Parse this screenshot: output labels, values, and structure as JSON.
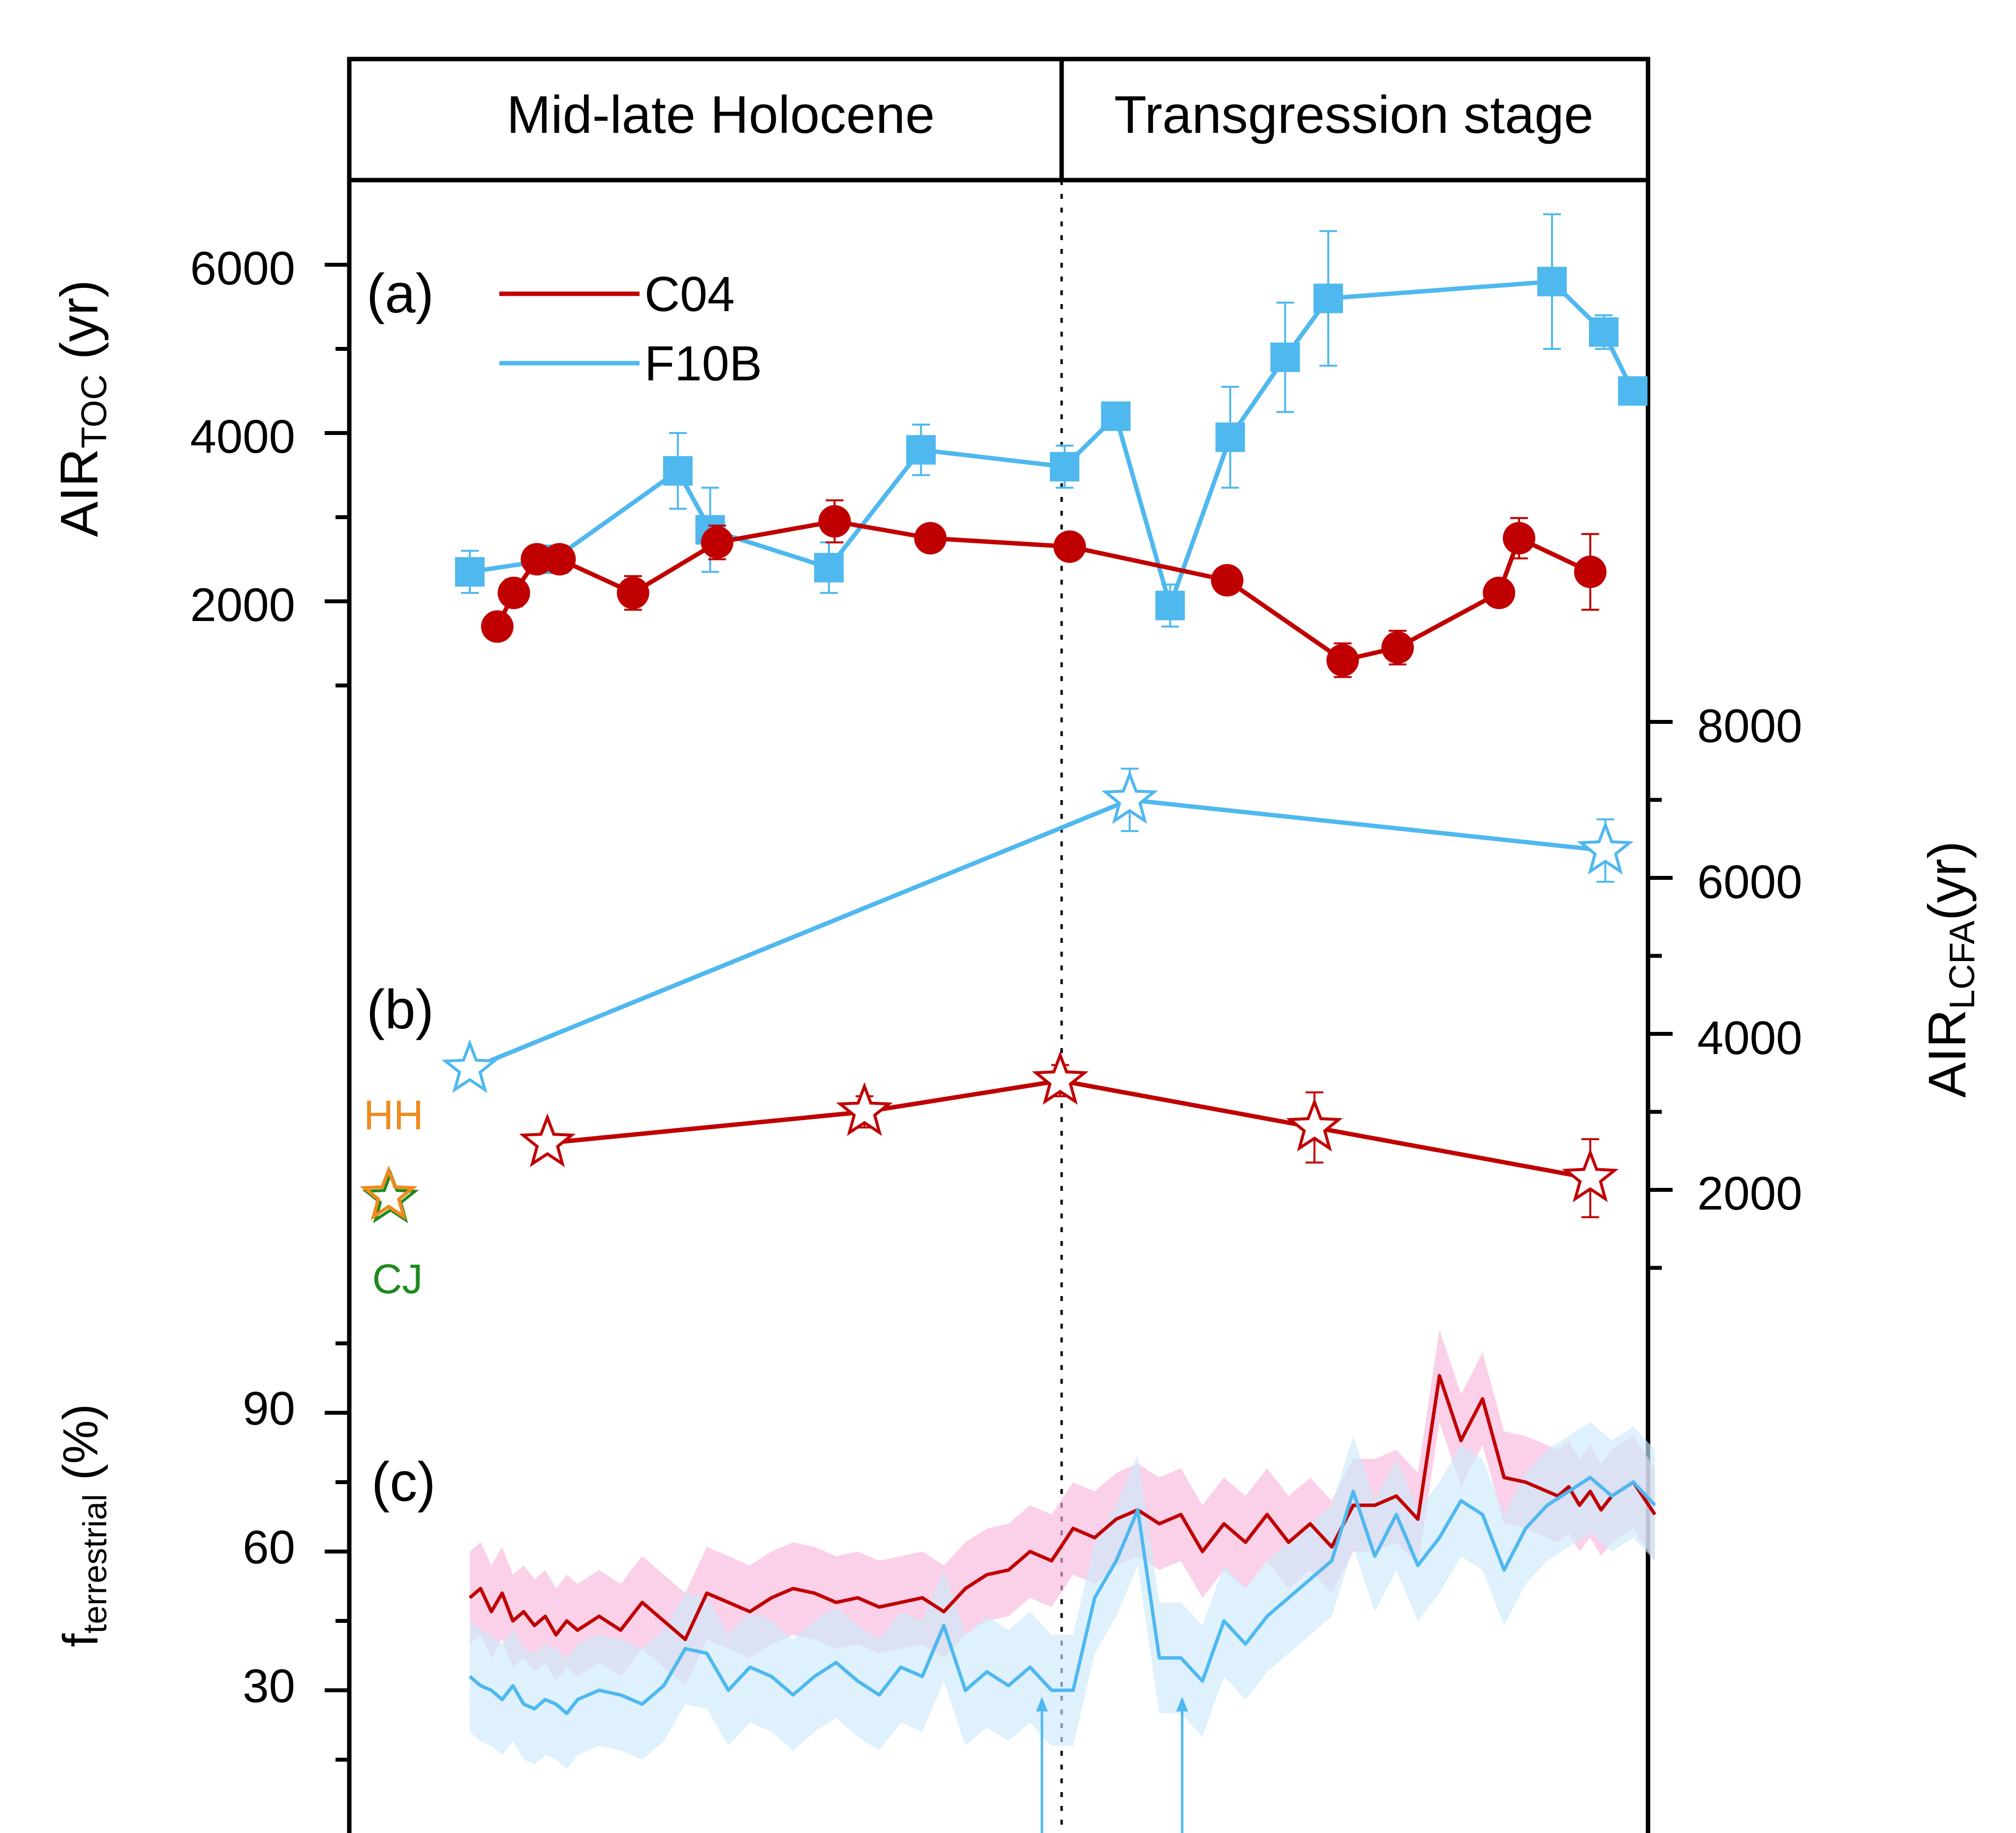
{
  "stages": [
    "Mid-late Holocene",
    "Transgression stage"
  ],
  "panel_labels": {
    "a": "(a)",
    "b": "(b)",
    "c": "(c)"
  },
  "legend": [
    {
      "label": "C04",
      "color": "#c00000"
    },
    {
      "label": "F10B",
      "color": "#4fb8ef"
    }
  ],
  "axes": {
    "toc": {
      "label_main": "AIR",
      "label_sub": "TOC",
      "label_unit": " (yr)",
      "ticks": [
        "6000",
        "4000",
        "2000"
      ]
    },
    "lcfa": {
      "label_main": "AIR",
      "label_sub": "LCFA",
      "label_unit": "(yr)",
      "ticks": [
        "8000",
        "6000",
        "4000",
        "2000"
      ]
    },
    "fterr": {
      "label_main": "f",
      "label_sub": "terrestrial",
      "label_unit": " (%)",
      "ticks": [
        "90",
        "60",
        "30"
      ]
    }
  },
  "reference_labels": {
    "hh": "HH",
    "cj": "CJ"
  },
  "colors": {
    "c04": "#c00000",
    "f10b": "#4fb8ef",
    "c04_band": "#f8b8dc",
    "f10b_band": "#cde9fa",
    "hh": "#f08a1e",
    "cj": "#1e8a1e"
  },
  "chart_data": [
    {
      "panel": "a",
      "type": "line",
      "ylabel": "AIR_TOC (yr)",
      "ylim": [
        1000,
        7000
      ],
      "series": [
        {
          "name": "C04",
          "marker": "circle",
          "x": [
            0.0255,
            0.0409,
            0.0623,
            0.0833,
            0.1515,
            0.2296,
            0.3386,
            0.4275,
            0.5568,
            0.703,
            0.8102,
            0.8612,
            0.9553,
            0.9739,
            1.04
          ],
          "y": [
            1700,
            2100,
            2500,
            2500,
            2100,
            2700,
            2950,
            2750,
            2650,
            2250,
            1300,
            1450,
            2100,
            2750,
            2350
          ],
          "err": [
            150,
            160,
            130,
            150,
            200,
            200,
            250,
            0,
            120,
            130,
            200,
            200,
            100,
            240,
            450
          ]
        },
        {
          "name": "F10B",
          "marker": "square",
          "x": [
            0.0,
            0.078,
            0.1931,
            0.2231,
            0.3333,
            0.4188,
            0.5521,
            0.5996,
            0.65,
            0.7058,
            0.7568,
            0.7968,
            1.0045,
            1.0525,
            1.0794
          ],
          "y": [
            2350,
            2500,
            3550,
            2850,
            2400,
            3800,
            3600,
            4200,
            1950,
            3950,
            4900,
            5600,
            5800,
            5200,
            4500
          ],
          "err": [
            250,
            0,
            450,
            500,
            300,
            300,
            250,
            0,
            250,
            600,
            650,
            800,
            800,
            200,
            0
          ]
        }
      ]
    },
    {
      "panel": "b",
      "type": "line",
      "ylabel": "AIR_LCFA(yr)",
      "ylim": [
        1000,
        9000
      ],
      "series": [
        {
          "name": "C04",
          "marker": "star",
          "x": [
            0.072,
            0.3663,
            0.548,
            0.784,
            1.04
          ],
          "y": [
            2600,
            3000,
            3400,
            2800,
            2150
          ],
          "err": [
            0,
            200,
            200,
            450,
            500
          ]
        },
        {
          "name": "F10B",
          "marker": "star",
          "x": [
            0.0,
            0.6125,
            1.054
          ],
          "y": [
            3550,
            7000,
            6350
          ],
          "err": [
            0,
            400,
            400
          ]
        }
      ],
      "reference_points": [
        {
          "name": "HH",
          "y": 2000
        },
        {
          "name": "CJ",
          "y": 2000
        }
      ]
    },
    {
      "panel": "c",
      "type": "area",
      "ylabel": "f_terrestrial (%)",
      "ylim": [
        0,
        100
      ],
      "series": [
        {
          "name": "C04",
          "x": [
            0.0,
            0.01,
            0.02,
            0.03,
            0.04,
            0.05,
            0.06,
            0.07,
            0.08,
            0.09,
            0.1,
            0.12,
            0.14,
            0.16,
            0.18,
            0.2,
            0.22,
            0.24,
            0.26,
            0.28,
            0.3,
            0.32,
            0.34,
            0.36,
            0.38,
            0.4,
            0.42,
            0.44,
            0.46,
            0.48,
            0.5,
            0.52,
            0.54,
            0.56,
            0.58,
            0.6,
            0.62,
            0.64,
            0.66,
            0.68,
            0.7,
            0.72,
            0.74,
            0.76,
            0.78,
            0.8,
            0.82,
            0.84,
            0.86,
            0.88,
            0.9,
            0.92,
            0.94,
            0.96,
            0.98,
            1.0,
            1.01,
            1.02,
            1.03,
            1.04,
            1.05,
            1.06,
            1.08,
            1.1
          ],
          "y": [
            50,
            52,
            47,
            51,
            45,
            47,
            44,
            46,
            42,
            45,
            43,
            46,
            43,
            49,
            45,
            41,
            51,
            49,
            47,
            50,
            52,
            51,
            49,
            50,
            48,
            49,
            50,
            47,
            52,
            55,
            56,
            60,
            58,
            65,
            63,
            67,
            69,
            66,
            68,
            60,
            66,
            62,
            68,
            62,
            66,
            61,
            70,
            70,
            72,
            67,
            98,
            84,
            93,
            76,
            75,
            73,
            72,
            74,
            70,
            73,
            69,
            72,
            75,
            68
          ],
          "band": 10
        },
        {
          "name": "F10B",
          "x": [
            0.0,
            0.01,
            0.02,
            0.03,
            0.04,
            0.05,
            0.06,
            0.07,
            0.08,
            0.09,
            0.1,
            0.12,
            0.14,
            0.16,
            0.18,
            0.2,
            0.22,
            0.24,
            0.26,
            0.28,
            0.3,
            0.32,
            0.34,
            0.36,
            0.38,
            0.4,
            0.42,
            0.44,
            0.46,
            0.48,
            0.5,
            0.52,
            0.54,
            0.56,
            0.58,
            0.6,
            0.62,
            0.64,
            0.66,
            0.68,
            0.7,
            0.72,
            0.74,
            0.76,
            0.78,
            0.8,
            0.82,
            0.84,
            0.86,
            0.88,
            0.9,
            0.92,
            0.94,
            0.96,
            0.98,
            1.0,
            1.02,
            1.04,
            1.06,
            1.08,
            1.1
          ],
          "y": [
            33,
            31,
            30,
            28,
            31,
            27,
            26,
            28,
            27,
            25,
            28,
            30,
            29,
            27,
            31,
            39,
            38,
            30,
            35,
            33,
            29,
            33,
            36,
            32,
            29,
            35,
            33,
            44,
            30,
            34,
            31,
            35,
            30,
            30,
            50,
            58,
            69,
            37,
            37,
            32,
            45,
            40,
            46,
            50,
            54,
            58,
            73,
            59,
            68,
            57,
            63,
            71,
            68,
            56,
            65,
            70,
            73,
            76,
            72,
            75,
            70
          ],
          "band": 12
        }
      ]
    }
  ]
}
